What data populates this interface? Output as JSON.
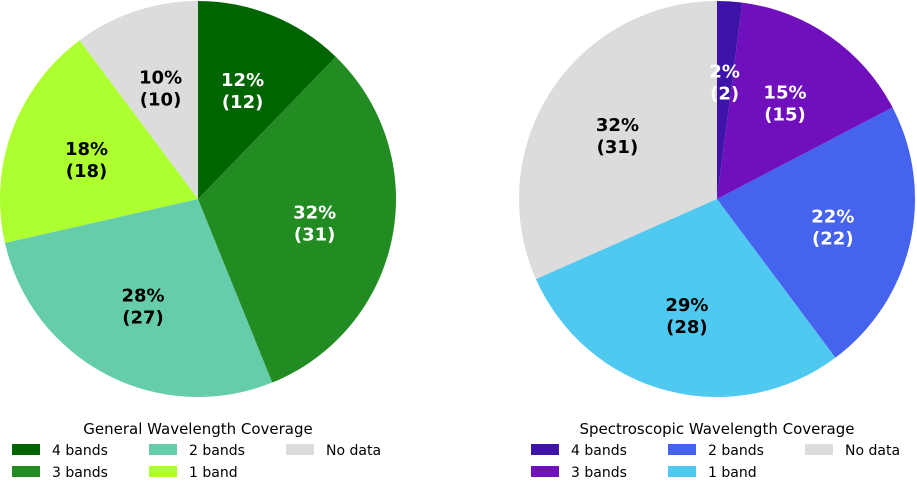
{
  "chart_data": [
    {
      "type": "pie",
      "title": "General Wavelength Coverage",
      "categories": [
        "No data",
        "1 band",
        "2 bands",
        "3 bands",
        "4 bands"
      ],
      "values": [
        10,
        18,
        27,
        31,
        12
      ],
      "labels": [
        {
          "pct": "10%",
          "count": "(10)"
        },
        {
          "pct": "18%",
          "count": "(18)"
        },
        {
          "pct": "28%",
          "count": "(27)"
        },
        {
          "pct": "32%",
          "count": "(31)"
        },
        {
          "pct": "12%",
          "count": "(12)"
        }
      ],
      "colors": [
        "#dcdcdc",
        "#adff2f",
        "#66cdaa",
        "#228b22",
        "#006400"
      ],
      "label_colors": [
        "#000000",
        "#000000",
        "#000000",
        "#ffffff",
        "#ffffff"
      ],
      "legend": {
        "title": "General Wavelength Coverage",
        "entries": [
          {
            "label": "4 bands",
            "color": "#006400"
          },
          {
            "label": "3 bands",
            "color": "#228b22"
          },
          {
            "label": "2 bands",
            "color": "#66cdaa"
          },
          {
            "label": "1 band",
            "color": "#adff2f"
          },
          {
            "label": "No data",
            "color": "#dcdcdc"
          }
        ]
      }
    },
    {
      "type": "pie",
      "title": "Spectroscopic Wavelength Coverage",
      "categories": [
        "No data",
        "1 band",
        "2 bands",
        "3 bands",
        "4 bands"
      ],
      "values": [
        31,
        28,
        22,
        15,
        2
      ],
      "labels": [
        {
          "pct": "32%",
          "count": "(31)"
        },
        {
          "pct": "29%",
          "count": "(28)"
        },
        {
          "pct": "22%",
          "count": "(22)"
        },
        {
          "pct": "15%",
          "count": "(15)"
        },
        {
          "pct": "2%",
          "count": "(2)"
        }
      ],
      "colors": [
        "#dcdcdc",
        "#4fc9f0",
        "#4563ed",
        "#7010bd",
        "#3d13a8"
      ],
      "label_colors": [
        "#000000",
        "#000000",
        "#ffffff",
        "#ffffff",
        "#ffffff"
      ],
      "legend": {
        "title": "Spectroscopic Wavelength Coverage",
        "entries": [
          {
            "label": "4 bands",
            "color": "#3d13a8"
          },
          {
            "label": "3 bands",
            "color": "#7010bd"
          },
          {
            "label": "2 bands",
            "color": "#4563ed"
          },
          {
            "label": "1 band",
            "color": "#4fc9f0"
          },
          {
            "label": "No data",
            "color": "#dcdcdc"
          }
        ]
      }
    }
  ]
}
